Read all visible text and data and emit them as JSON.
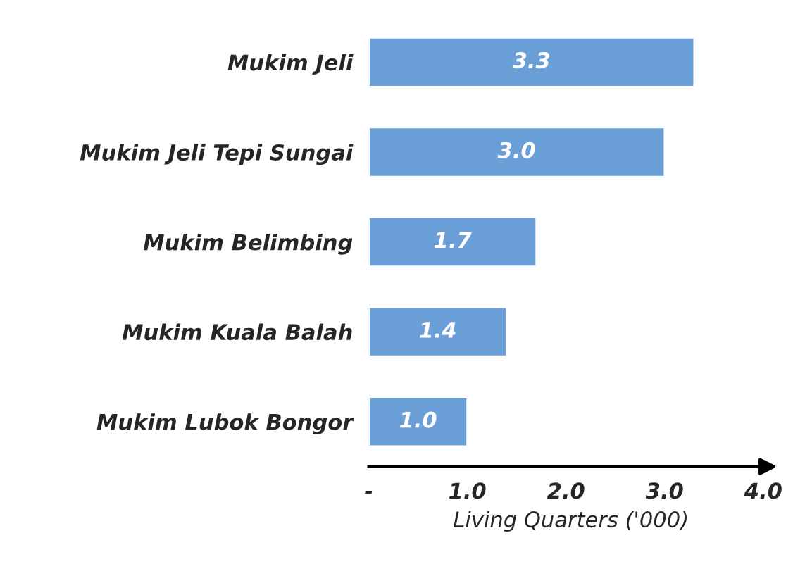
{
  "chart_data": {
    "type": "bar",
    "orientation": "horizontal",
    "categories": [
      "Mukim Jeli",
      "Mukim Jeli Tepi Sungai",
      "Mukim Belimbing",
      "Mukim Kuala Balah",
      "Mukim Lubok Bongor"
    ],
    "values": [
      3.3,
      3.0,
      1.7,
      1.4,
      1.0
    ],
    "value_labels": [
      "3.3",
      "3.0",
      "1.7",
      "1.4",
      "1.0"
    ],
    "color": "#6a9fd8",
    "xlabel": "Living Quarters ('000)",
    "xlim": [
      0,
      4.1
    ],
    "xticks": [
      {
        "value": 0,
        "label": "-"
      },
      {
        "value": 1,
        "label": "1.0"
      },
      {
        "value": 2,
        "label": "2.0"
      },
      {
        "value": 3,
        "label": "3.0"
      },
      {
        "value": 4,
        "label": "4.0"
      }
    ],
    "grid": false,
    "legend": false
  }
}
